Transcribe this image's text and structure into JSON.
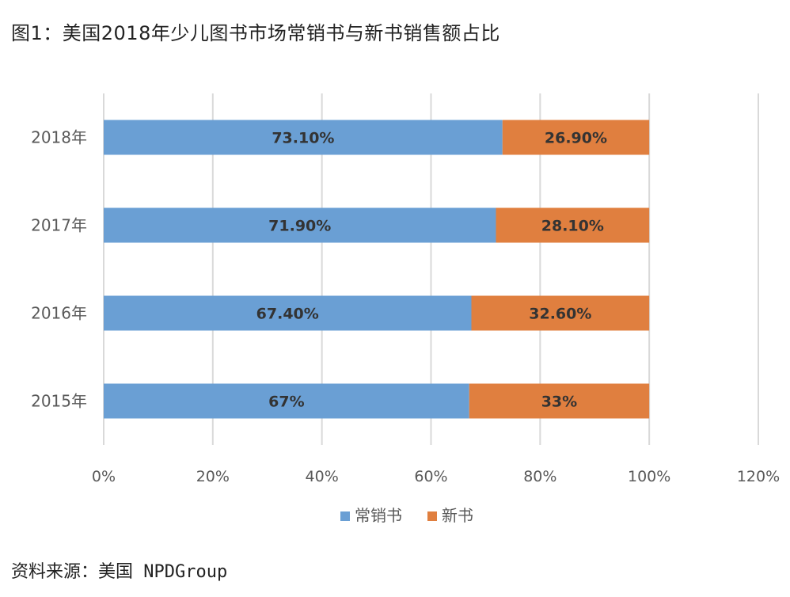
{
  "title": "图1：美国2018年少儿图书市场常销书与新书销售额占比",
  "source": "资料来源：美国 NPDGroup",
  "chart_data": {
    "type": "bar",
    "orientation": "horizontal",
    "stacked": true,
    "categories": [
      "2018年",
      "2017年",
      "2016年",
      "2015年"
    ],
    "series": [
      {
        "name": "常销书",
        "values": [
          73.1,
          71.9,
          67.4,
          67
        ],
        "labels": [
          "73.10%",
          "71.90%",
          "67.40%",
          "67%"
        ],
        "color": "#6a9fd4"
      },
      {
        "name": "新书",
        "values": [
          26.9,
          28.1,
          32.6,
          33
        ],
        "labels": [
          "26.90%",
          "28.10%",
          "32.60%",
          "33%"
        ],
        "color": "#e07f3f"
      }
    ],
    "xlim": [
      0,
      120
    ],
    "xticks": [
      0,
      20,
      40,
      60,
      80,
      100,
      120
    ],
    "xtick_labels": [
      "0%",
      "20%",
      "40%",
      "60%",
      "80%",
      "100%",
      "120%"
    ],
    "grid": true,
    "legend_position": "bottom"
  }
}
